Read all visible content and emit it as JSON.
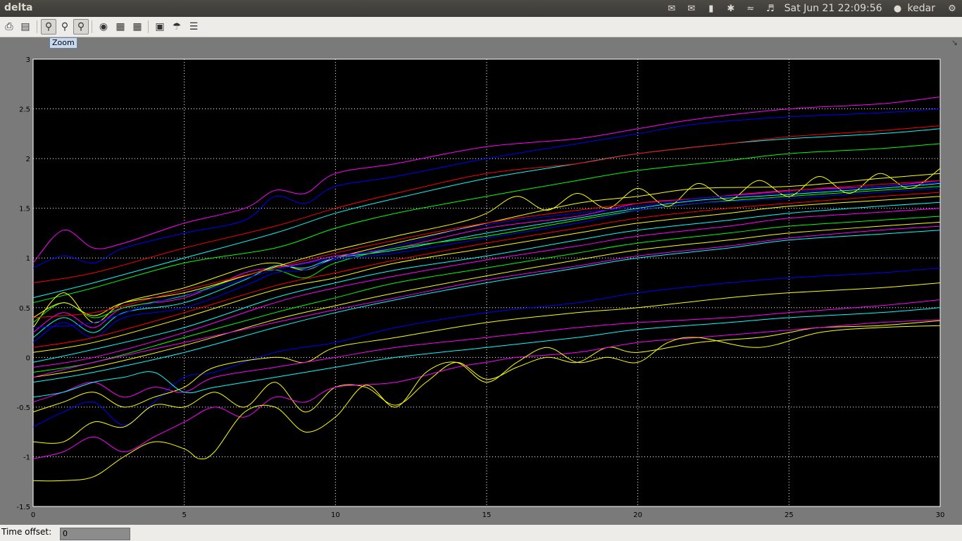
{
  "window": {
    "title": "delta"
  },
  "tray": {
    "icons": [
      "indicator-icon",
      "mail-icon",
      "battery-icon",
      "bluetooth-icon",
      "wifi-icon",
      "volume-icon"
    ],
    "clock": "Sat Jun 21 22:09:56",
    "user": "kedar",
    "gear_icon": "gear-icon"
  },
  "toolbar": {
    "buttons": [
      "print-icon",
      "params-icon",
      "zoom-icon",
      "zoom-x-icon",
      "zoom-y-icon",
      "autoscale-icon",
      "save-axes-icon",
      "restore-axes-icon",
      "floating-scope-icon",
      "lock-icon",
      "signal-selector-icon"
    ],
    "active": [
      "zoom-icon",
      "zoom-y-icon"
    ],
    "tooltip": "Zoom"
  },
  "status": {
    "time_offset_label": "Time offset:",
    "time_offset_value": "0"
  },
  "chart_data": {
    "type": "line",
    "title": "",
    "xlabel": "",
    "ylabel": "",
    "xlim": [
      0,
      30
    ],
    "ylim": [
      -1.5,
      3
    ],
    "xticks": [
      "0",
      "5",
      "10",
      "15",
      "20",
      "25",
      "30"
    ],
    "yticks": [
      "-1.5",
      "-1",
      "-0.5",
      "0",
      "0.5",
      "1",
      "1.5",
      "2",
      "2.5",
      "3"
    ],
    "grid": true,
    "background": "#000000",
    "colors": [
      "#ffff00",
      "#ff00ff",
      "#00ffff",
      "#ff0000",
      "#00ff00",
      "#0000ff"
    ],
    "series": [
      {
        "color": "#ff00ff",
        "x": [
          0,
          1,
          2,
          3,
          5,
          7,
          8,
          9,
          10,
          12,
          15,
          18,
          20,
          22,
          25,
          28,
          30
        ],
        "y": [
          0.95,
          1.28,
          1.1,
          1.15,
          1.35,
          1.5,
          1.68,
          1.65,
          1.85,
          1.95,
          2.12,
          2.2,
          2.3,
          2.4,
          2.5,
          2.55,
          2.62
        ]
      },
      {
        "color": "#0000ff",
        "x": [
          0,
          1,
          2,
          3,
          5,
          7,
          8,
          9,
          10,
          12,
          15,
          18,
          20,
          22,
          25,
          28,
          30
        ],
        "y": [
          0.9,
          1.02,
          0.95,
          1.1,
          1.25,
          1.38,
          1.62,
          1.55,
          1.72,
          1.82,
          2.0,
          2.15,
          2.25,
          2.35,
          2.42,
          2.46,
          2.5
        ]
      },
      {
        "color": "#00ffff",
        "x": [
          0,
          2,
          5,
          8,
          10,
          12,
          15,
          18,
          20,
          23,
          25,
          28,
          30
        ],
        "y": [
          0.6,
          0.75,
          1.0,
          1.25,
          1.45,
          1.6,
          1.8,
          1.95,
          2.05,
          2.15,
          2.2,
          2.25,
          2.3
        ]
      },
      {
        "color": "#ff0000",
        "x": [
          0,
          2,
          5,
          8,
          10,
          12,
          15,
          18,
          20,
          23,
          25,
          28,
          30
        ],
        "y": [
          0.75,
          0.85,
          1.1,
          1.32,
          1.5,
          1.65,
          1.85,
          1.95,
          2.05,
          2.15,
          2.22,
          2.28,
          2.33
        ]
      },
      {
        "color": "#00ff00",
        "x": [
          0,
          2,
          5,
          8,
          10,
          12,
          15,
          18,
          20,
          23,
          25,
          28,
          30
        ],
        "y": [
          0.55,
          0.7,
          0.95,
          1.1,
          1.3,
          1.45,
          1.62,
          1.78,
          1.88,
          1.98,
          2.05,
          2.1,
          2.15
        ]
      },
      {
        "color": "#ffff00",
        "x": [
          0,
          1,
          2,
          3,
          5,
          7,
          8,
          9,
          10,
          12,
          15,
          18,
          20,
          22,
          25,
          28,
          30
        ],
        "y": [
          0.3,
          0.65,
          0.35,
          0.55,
          0.7,
          0.9,
          0.95,
          0.88,
          1.0,
          1.15,
          1.35,
          1.55,
          1.62,
          1.7,
          1.72,
          1.8,
          1.85
        ]
      },
      {
        "color": "#ff00ff",
        "x": [
          0,
          1,
          2,
          3,
          5,
          7,
          8,
          9,
          10,
          12,
          15,
          18,
          20,
          22,
          25,
          28,
          30
        ],
        "y": [
          0.25,
          0.45,
          0.3,
          0.5,
          0.6,
          0.85,
          0.9,
          0.95,
          1.02,
          1.1,
          1.3,
          1.42,
          1.55,
          1.6,
          1.68,
          1.72,
          1.78
        ]
      },
      {
        "color": "#00ffff",
        "x": [
          0,
          1,
          2,
          3,
          5,
          7,
          8,
          9,
          10,
          12,
          15,
          18,
          20,
          22,
          25,
          28,
          30
        ],
        "y": [
          0.2,
          0.4,
          0.25,
          0.45,
          0.55,
          0.78,
          0.92,
          0.9,
          1.0,
          1.08,
          1.25,
          1.4,
          1.5,
          1.58,
          1.64,
          1.7,
          1.75
        ]
      },
      {
        "color": "#00ff00",
        "x": [
          0,
          1,
          2,
          3,
          5,
          7,
          8,
          9,
          10,
          12,
          15,
          18,
          20,
          22,
          25,
          28,
          30
        ],
        "y": [
          0.35,
          0.55,
          0.4,
          0.5,
          0.62,
          0.82,
          0.88,
          0.8,
          0.95,
          1.1,
          1.22,
          1.38,
          1.48,
          1.55,
          1.62,
          1.68,
          1.72
        ]
      },
      {
        "color": "#0000ff",
        "x": [
          0,
          1,
          2,
          3,
          5,
          7,
          8,
          9,
          10,
          12,
          15,
          18,
          20,
          22,
          25,
          28,
          30
        ],
        "y": [
          0.15,
          0.35,
          0.2,
          0.4,
          0.5,
          0.72,
          0.85,
          0.88,
          0.98,
          1.05,
          1.2,
          1.35,
          1.48,
          1.55,
          1.6,
          1.66,
          1.7
        ]
      },
      {
        "color": "#ff0000",
        "x": [
          0,
          2,
          5,
          8,
          10,
          12,
          15,
          18,
          20,
          23,
          25,
          28,
          30
        ],
        "y": [
          0.1,
          0.2,
          0.45,
          0.72,
          0.85,
          0.98,
          1.15,
          1.3,
          1.4,
          1.5,
          1.55,
          1.62,
          1.66
        ]
      },
      {
        "color": "#ffff00",
        "x": [
          0,
          2,
          5,
          8,
          10,
          12,
          15,
          18,
          20,
          23,
          25,
          28,
          30
        ],
        "y": [
          0.05,
          0.15,
          0.4,
          0.68,
          0.8,
          0.95,
          1.1,
          1.25,
          1.35,
          1.45,
          1.52,
          1.58,
          1.62
        ]
      },
      {
        "color": "#00ffff",
        "x": [
          0,
          2,
          5,
          8,
          10,
          12,
          15,
          18,
          20,
          23,
          25,
          28,
          30
        ],
        "y": [
          -0.05,
          0.08,
          0.3,
          0.6,
          0.75,
          0.88,
          1.02,
          1.18,
          1.28,
          1.38,
          1.45,
          1.52,
          1.56
        ]
      },
      {
        "color": "#ff00ff",
        "x": [
          0,
          2,
          5,
          8,
          10,
          12,
          15,
          18,
          20,
          23,
          25,
          28,
          30
        ],
        "y": [
          -0.1,
          0.0,
          0.25,
          0.55,
          0.7,
          0.82,
          0.98,
          1.12,
          1.22,
          1.32,
          1.4,
          1.46,
          1.5
        ]
      },
      {
        "color": "#00ff00",
        "x": [
          0,
          2,
          5,
          8,
          10,
          12,
          15,
          18,
          20,
          23,
          25,
          28,
          30
        ],
        "y": [
          -0.15,
          -0.05,
          0.2,
          0.45,
          0.6,
          0.75,
          0.9,
          1.05,
          1.15,
          1.25,
          1.32,
          1.38,
          1.42
        ]
      },
      {
        "color": "#ffff00",
        "x": [
          0,
          2,
          5,
          8,
          10,
          12,
          15,
          18,
          20,
          23,
          25,
          28,
          30
        ],
        "y": [
          -0.2,
          -0.1,
          0.12,
          0.38,
          0.52,
          0.65,
          0.82,
          0.98,
          1.08,
          1.18,
          1.25,
          1.32,
          1.36
        ]
      },
      {
        "color": "#00ffff",
        "x": [
          0,
          2,
          5,
          8,
          10,
          12,
          15,
          18,
          20,
          23,
          25,
          28,
          30
        ],
        "y": [
          -0.25,
          -0.15,
          0.05,
          0.3,
          0.45,
          0.58,
          0.75,
          0.9,
          1.0,
          1.1,
          1.18,
          1.24,
          1.28
        ]
      },
      {
        "color": "#ff00ff",
        "x": [
          0,
          2,
          5,
          8,
          10,
          12,
          15,
          18,
          20,
          23,
          25,
          28,
          30
        ],
        "y": [
          -0.2,
          -0.05,
          0.15,
          0.35,
          0.48,
          0.6,
          0.78,
          0.92,
          1.02,
          1.12,
          1.2,
          1.28,
          1.32
        ]
      },
      {
        "color": "#0000ff",
        "x": [
          0,
          1,
          2,
          3,
          4,
          5,
          6,
          8,
          10,
          12,
          15,
          18,
          20,
          23,
          25,
          28,
          30
        ],
        "y": [
          -0.7,
          -0.55,
          -0.45,
          -0.68,
          -0.45,
          -0.2,
          -0.15,
          0.05,
          0.15,
          0.3,
          0.45,
          0.55,
          0.65,
          0.75,
          0.8,
          0.85,
          0.9
        ]
      },
      {
        "color": "#ffff00",
        "x": [
          0,
          1,
          2,
          3,
          4,
          5,
          6,
          8,
          9,
          10,
          12,
          15,
          18,
          20,
          23,
          25,
          28,
          30
        ],
        "y": [
          -0.55,
          -0.45,
          -0.35,
          -0.5,
          -0.4,
          -0.3,
          -0.1,
          0.0,
          -0.05,
          0.1,
          0.2,
          0.35,
          0.45,
          0.5,
          0.6,
          0.65,
          0.7,
          0.75
        ]
      },
      {
        "color": "#ff00ff",
        "x": [
          0,
          1,
          2,
          3,
          4,
          5,
          6,
          8,
          10,
          12,
          15,
          18,
          20,
          23,
          25,
          28,
          30
        ],
        "y": [
          -0.45,
          -0.35,
          -0.25,
          -0.4,
          -0.3,
          -0.35,
          -0.2,
          -0.1,
          0.0,
          0.1,
          0.2,
          0.3,
          0.35,
          0.4,
          0.45,
          0.52,
          0.58
        ]
      },
      {
        "color": "#00ffff",
        "x": [
          0,
          1,
          2,
          3,
          4,
          5,
          6,
          8,
          10,
          12,
          15,
          18,
          20,
          23,
          25,
          28,
          30
        ],
        "y": [
          -0.4,
          -0.35,
          -0.25,
          -0.2,
          -0.15,
          -0.35,
          -0.3,
          -0.2,
          -0.1,
          0.0,
          0.1,
          0.2,
          0.28,
          0.35,
          0.4,
          0.45,
          0.5
        ]
      },
      {
        "color": "#ffff00",
        "x": [
          0,
          1,
          2,
          3,
          4,
          5,
          6,
          7,
          8,
          9,
          10,
          11,
          12,
          13,
          14,
          15,
          16,
          17,
          18,
          19,
          20,
          22,
          24,
          25,
          26,
          28,
          30
        ],
        "y": [
          -0.85,
          -0.85,
          -0.65,
          -0.7,
          -0.48,
          -0.5,
          -0.35,
          -0.5,
          -0.25,
          -0.55,
          -0.3,
          -0.3,
          -0.48,
          -0.25,
          -0.05,
          -0.22,
          -0.1,
          0.0,
          -0.05,
          0.1,
          0.05,
          0.15,
          0.2,
          0.25,
          0.3,
          0.32,
          0.37
        ]
      },
      {
        "color": "#ff00ff",
        "x": [
          0,
          1,
          2,
          3,
          4,
          5,
          6,
          7,
          8,
          9,
          10,
          12,
          14,
          15,
          16,
          18,
          20,
          22,
          24,
          26,
          28,
          30
        ],
        "y": [
          -1.02,
          -0.95,
          -0.8,
          -0.95,
          -0.8,
          -0.65,
          -0.5,
          -0.6,
          -0.4,
          -0.45,
          -0.3,
          -0.25,
          -0.1,
          -0.05,
          0.0,
          0.05,
          0.15,
          0.2,
          0.25,
          0.3,
          0.35,
          0.38
        ]
      },
      {
        "color": "#ffff00",
        "x": [
          0,
          1,
          2,
          3,
          4,
          5,
          5.5,
          6,
          7,
          8,
          9,
          10,
          11,
          12,
          13,
          14,
          15,
          16,
          17,
          18,
          19,
          20,
          21,
          22,
          24,
          26,
          28,
          30
        ],
        "y": [
          -1.24,
          -1.24,
          -1.2,
          -1.0,
          -0.85,
          -0.92,
          -1.02,
          -0.95,
          -0.55,
          -0.5,
          -0.75,
          -0.6,
          -0.28,
          -0.5,
          -0.15,
          -0.05,
          -0.25,
          -0.05,
          0.1,
          -0.05,
          0.0,
          -0.05,
          0.15,
          0.2,
          0.1,
          0.25,
          0.3,
          0.32
        ]
      },
      {
        "color": "#ffff00",
        "x": [
          0,
          1,
          2,
          3,
          5,
          7,
          9,
          10,
          12,
          14,
          15,
          16,
          17,
          18,
          19,
          20,
          21,
          22,
          23,
          24,
          25,
          26,
          27,
          28,
          29,
          30
        ],
        "y": [
          0.4,
          0.55,
          0.42,
          0.55,
          0.65,
          0.82,
          1.0,
          1.08,
          1.22,
          1.35,
          1.45,
          1.62,
          1.48,
          1.65,
          1.5,
          1.7,
          1.52,
          1.75,
          1.58,
          1.78,
          1.62,
          1.82,
          1.65,
          1.85,
          1.7,
          1.9
        ]
      },
      {
        "color": "#ff0000",
        "x": [
          0,
          2,
          4,
          6,
          8,
          10,
          12,
          14,
          16,
          18,
          20,
          22,
          24,
          26,
          28,
          30
        ],
        "y": [
          0.4,
          0.45,
          0.6,
          0.75,
          0.9,
          1.05,
          1.18,
          1.3,
          1.4,
          1.48,
          1.55,
          1.6,
          1.65,
          1.7,
          1.74,
          1.78
        ]
      },
      {
        "color": "#0000ff",
        "x": [
          0,
          2,
          4,
          6,
          8,
          10,
          12,
          14,
          16,
          18,
          20,
          22,
          24,
          26,
          28,
          30
        ],
        "y": [
          0.3,
          0.35,
          0.55,
          0.7,
          0.88,
          1.0,
          1.12,
          1.28,
          1.38,
          1.45,
          1.52,
          1.6,
          1.64,
          1.68,
          1.72,
          1.76
        ]
      }
    ]
  }
}
